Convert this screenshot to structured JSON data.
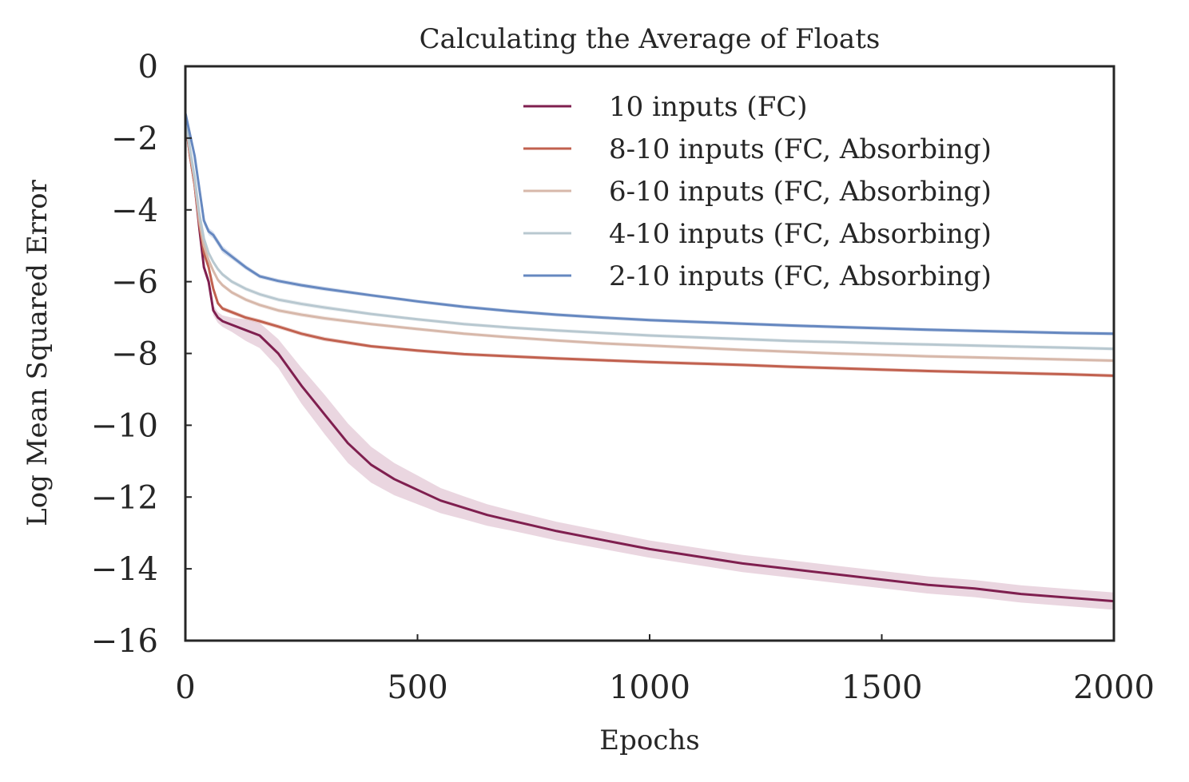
{
  "chart_data": {
    "type": "line",
    "title": "Calculating the Average of Floats",
    "xlabel": "Epochs",
    "ylabel": "Log Mean Squared Error",
    "xlim": [
      0,
      2000
    ],
    "ylim": [
      -16,
      0
    ],
    "xticks": [
      0,
      500,
      1000,
      1500,
      2000
    ],
    "xtick_labels": [
      "0",
      "500",
      "1000",
      "1500",
      "2000"
    ],
    "yticks": [
      0,
      -2,
      -4,
      -6,
      -8,
      -10,
      -12,
      -14,
      -16
    ],
    "ytick_labels": [
      "0",
      "−2",
      "−4",
      "−6",
      "−8",
      "−10",
      "−12",
      "−14",
      "−16"
    ],
    "grid": false,
    "legend_position": "top-right",
    "series": [
      {
        "name": "10 inputs (FC)",
        "color": "#7f1f4f",
        "band_color": "#d9b5c6",
        "x": [
          0,
          10,
          20,
          30,
          40,
          50,
          60,
          70,
          80,
          100,
          130,
          160,
          200,
          250,
          300,
          350,
          400,
          450,
          500,
          550,
          600,
          650,
          700,
          750,
          800,
          900,
          1000,
          1100,
          1200,
          1300,
          1400,
          1500,
          1600,
          1700,
          1800,
          1900,
          2000
        ],
        "y": [
          -1.5,
          -2.5,
          -3.3,
          -4.5,
          -5.6,
          -6.0,
          -6.8,
          -7.0,
          -7.1,
          -7.2,
          -7.35,
          -7.5,
          -8.0,
          -8.9,
          -9.7,
          -10.5,
          -11.1,
          -11.5,
          -11.8,
          -12.1,
          -12.3,
          -12.5,
          -12.65,
          -12.8,
          -12.95,
          -13.2,
          -13.45,
          -13.65,
          -13.85,
          -14.0,
          -14.15,
          -14.3,
          -14.45,
          -14.55,
          -14.7,
          -14.8,
          -14.9
        ],
        "band": [
          0.0,
          0.05,
          0.08,
          0.1,
          0.12,
          0.12,
          0.14,
          0.15,
          0.16,
          0.2,
          0.3,
          0.35,
          0.4,
          0.5,
          0.55,
          0.55,
          0.5,
          0.45,
          0.4,
          0.35,
          0.32,
          0.3,
          0.28,
          0.27,
          0.26,
          0.25,
          0.24,
          0.24,
          0.24,
          0.24,
          0.24,
          0.24,
          0.24,
          0.24,
          0.24,
          0.24,
          0.24
        ]
      },
      {
        "name": "8-10 inputs  (FC, Absorbing)",
        "color": "#c1614f",
        "x": [
          0,
          10,
          20,
          30,
          40,
          50,
          60,
          70,
          80,
          100,
          130,
          160,
          200,
          250,
          300,
          400,
          500,
          600,
          700,
          800,
          900,
          1000,
          1100,
          1200,
          1300,
          1400,
          1500,
          1600,
          1700,
          1800,
          1900,
          2000
        ],
        "y": [
          -1.5,
          -2.5,
          -3.3,
          -4.4,
          -5.2,
          -5.6,
          -6.2,
          -6.6,
          -6.75,
          -6.85,
          -7.0,
          -7.1,
          -7.25,
          -7.45,
          -7.6,
          -7.8,
          -7.92,
          -8.02,
          -8.08,
          -8.14,
          -8.19,
          -8.24,
          -8.28,
          -8.32,
          -8.37,
          -8.41,
          -8.45,
          -8.49,
          -8.52,
          -8.55,
          -8.58,
          -8.62
        ],
        "band": [
          0.0,
          0.04,
          0.05,
          0.06,
          0.06,
          0.06,
          0.06,
          0.06,
          0.06,
          0.06,
          0.06,
          0.06,
          0.06,
          0.06,
          0.06,
          0.05,
          0.05,
          0.05,
          0.05,
          0.05,
          0.05,
          0.05,
          0.05,
          0.05,
          0.05,
          0.05,
          0.05,
          0.05,
          0.05,
          0.05,
          0.05,
          0.05
        ]
      },
      {
        "name": "6-10 inputs  (FC, Absorbing)",
        "color": "#d7b8aa",
        "x": [
          0,
          10,
          20,
          30,
          40,
          50,
          60,
          70,
          80,
          100,
          130,
          160,
          200,
          250,
          300,
          400,
          500,
          600,
          700,
          800,
          900,
          1000,
          1100,
          1200,
          1300,
          1400,
          1500,
          1600,
          1700,
          1800,
          1900,
          2000
        ],
        "y": [
          -1.5,
          -2.4,
          -3.2,
          -4.3,
          -5.0,
          -5.4,
          -5.7,
          -5.95,
          -6.1,
          -6.3,
          -6.5,
          -6.65,
          -6.8,
          -6.92,
          -7.02,
          -7.18,
          -7.32,
          -7.45,
          -7.55,
          -7.64,
          -7.72,
          -7.78,
          -7.84,
          -7.9,
          -7.95,
          -8.0,
          -8.04,
          -8.08,
          -8.11,
          -8.14,
          -8.17,
          -8.2
        ],
        "band": [
          0.0,
          0.04,
          0.05,
          0.06,
          0.06,
          0.06,
          0.06,
          0.06,
          0.06,
          0.06,
          0.06,
          0.06,
          0.06,
          0.06,
          0.06,
          0.05,
          0.05,
          0.05,
          0.05,
          0.05,
          0.05,
          0.05,
          0.05,
          0.05,
          0.05,
          0.05,
          0.05,
          0.05,
          0.05,
          0.05,
          0.05,
          0.05
        ]
      },
      {
        "name": "4-10 inputs  (FC, Absorbing)",
        "color": "#b8c8d0",
        "x": [
          0,
          10,
          20,
          30,
          40,
          50,
          60,
          70,
          80,
          100,
          130,
          160,
          200,
          250,
          300,
          400,
          500,
          600,
          700,
          800,
          900,
          1000,
          1100,
          1200,
          1300,
          1400,
          1500,
          1600,
          1700,
          1800,
          1900,
          2000
        ],
        "y": [
          -1.4,
          -2.3,
          -3.1,
          -4.1,
          -4.8,
          -5.2,
          -5.45,
          -5.65,
          -5.8,
          -6.0,
          -6.2,
          -6.35,
          -6.5,
          -6.62,
          -6.72,
          -6.9,
          -7.05,
          -7.18,
          -7.28,
          -7.36,
          -7.43,
          -7.5,
          -7.55,
          -7.6,
          -7.65,
          -7.68,
          -7.72,
          -7.75,
          -7.78,
          -7.81,
          -7.84,
          -7.87
        ],
        "band": [
          0.0,
          0.04,
          0.05,
          0.06,
          0.06,
          0.06,
          0.06,
          0.06,
          0.06,
          0.06,
          0.06,
          0.06,
          0.06,
          0.06,
          0.06,
          0.05,
          0.05,
          0.05,
          0.05,
          0.05,
          0.05,
          0.05,
          0.05,
          0.05,
          0.05,
          0.05,
          0.05,
          0.05,
          0.05,
          0.05,
          0.05,
          0.05
        ]
      },
      {
        "name": "2-10 inputs  (FC, Absorbing)",
        "color": "#6688c0",
        "x": [
          0,
          10,
          20,
          30,
          40,
          50,
          60,
          70,
          80,
          100,
          130,
          160,
          200,
          250,
          300,
          400,
          500,
          600,
          700,
          800,
          900,
          1000,
          1100,
          1200,
          1300,
          1400,
          1500,
          1600,
          1700,
          1800,
          1900,
          2000
        ],
        "y": [
          -1.3,
          -1.9,
          -2.5,
          -3.4,
          -4.3,
          -4.6,
          -4.7,
          -4.9,
          -5.1,
          -5.3,
          -5.6,
          -5.85,
          -5.98,
          -6.1,
          -6.2,
          -6.38,
          -6.55,
          -6.7,
          -6.82,
          -6.92,
          -7.0,
          -7.07,
          -7.12,
          -7.17,
          -7.22,
          -7.26,
          -7.3,
          -7.34,
          -7.37,
          -7.4,
          -7.43,
          -7.45
        ],
        "band": [
          0.0,
          0.05,
          0.06,
          0.08,
          0.1,
          0.1,
          0.1,
          0.1,
          0.1,
          0.08,
          0.07,
          0.06,
          0.06,
          0.06,
          0.06,
          0.05,
          0.05,
          0.05,
          0.05,
          0.05,
          0.05,
          0.05,
          0.05,
          0.05,
          0.05,
          0.05,
          0.05,
          0.05,
          0.05,
          0.05,
          0.05,
          0.05
        ]
      }
    ]
  }
}
